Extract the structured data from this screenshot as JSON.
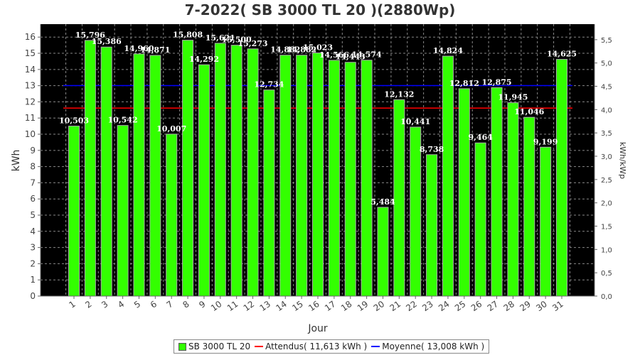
{
  "title": "7-2022( SB 3000 TL 20 )(2880Wp)",
  "colors": {
    "background": "#000000",
    "bar_fill": "#33ff00",
    "bar_edge": "#aaaaaa",
    "expected_line": "#ff0000",
    "average_line": "#0000ff",
    "grid": "#888888"
  },
  "legend": {
    "items": [
      {
        "label": "SB 3000 TL 20",
        "color": "#33ff00",
        "kind": "box"
      },
      {
        "label": "Attendus( 11,613 kWh )",
        "color": "#ff0000",
        "kind": "line"
      },
      {
        "label": "Moyenne( 13,008 kWh )",
        "color": "#0000ff",
        "kind": "line"
      }
    ]
  },
  "chart_data": {
    "type": "bar",
    "title": "7-2022( SB 3000 TL 20 )(2880Wp)",
    "xlabel": "Jour",
    "ylabel": "kWh",
    "y2label": "kWh/kWp",
    "ylim": [
      0,
      16.8
    ],
    "y_ticks": [
      "0",
      "1",
      "2",
      "3",
      "4",
      "5",
      "6",
      "7",
      "8",
      "9",
      "10",
      "11",
      "12",
      "13",
      "14",
      "15",
      "16"
    ],
    "y2lim": [
      0,
      5.833
    ],
    "y2_ticks": [
      "0,0",
      "0,5",
      "1,0",
      "1,5",
      "2,0",
      "2,5",
      "3,0",
      "3,5",
      "4,0",
      "4,5",
      "5,0",
      "5,5"
    ],
    "grid": true,
    "legend_position": "bottom",
    "categories": [
      "1",
      "2",
      "3",
      "4",
      "5",
      "6",
      "7",
      "8",
      "9",
      "10",
      "11",
      "12",
      "13",
      "14",
      "15",
      "16",
      "17",
      "18",
      "19",
      "20",
      "21",
      "22",
      "23",
      "24",
      "25",
      "26",
      "27",
      "28",
      "29",
      "30",
      "31"
    ],
    "series": [
      {
        "name": "SB 3000 TL 20",
        "values": [
          10.503,
          15.796,
          15.386,
          10.542,
          14.96,
          14.871,
          10.007,
          15.808,
          14.292,
          15.621,
          15.5,
          15.273,
          12.734,
          14.882,
          14.882,
          15.023,
          14.566,
          14.443,
          14.574,
          5.484,
          12.132,
          10.441,
          8.738,
          14.824,
          12.812,
          9.464,
          12.875,
          11.945,
          11.046,
          9.199,
          14.625
        ],
        "labels": [
          "10,503",
          "15,796",
          "15,386",
          "10,542",
          "14,960",
          "14,871",
          "10,007",
          "15,808",
          "14,292",
          "15,621",
          "15,500",
          "15,273",
          "12,734",
          "14,882",
          "14,882",
          "15,023",
          "14,566",
          "14,443",
          "14,574",
          "5,484",
          "12,132",
          "10,441",
          "8,738",
          "14,824",
          "12,812",
          "9,464",
          "12,875",
          "11,945",
          "11,046",
          "9,199",
          "14,625"
        ]
      }
    ],
    "reference_lines": [
      {
        "name": "Attendus( 11,613 kWh )",
        "value": 11.613
      },
      {
        "name": "Moyenne( 13,008 kWh )",
        "value": 13.008
      }
    ]
  }
}
